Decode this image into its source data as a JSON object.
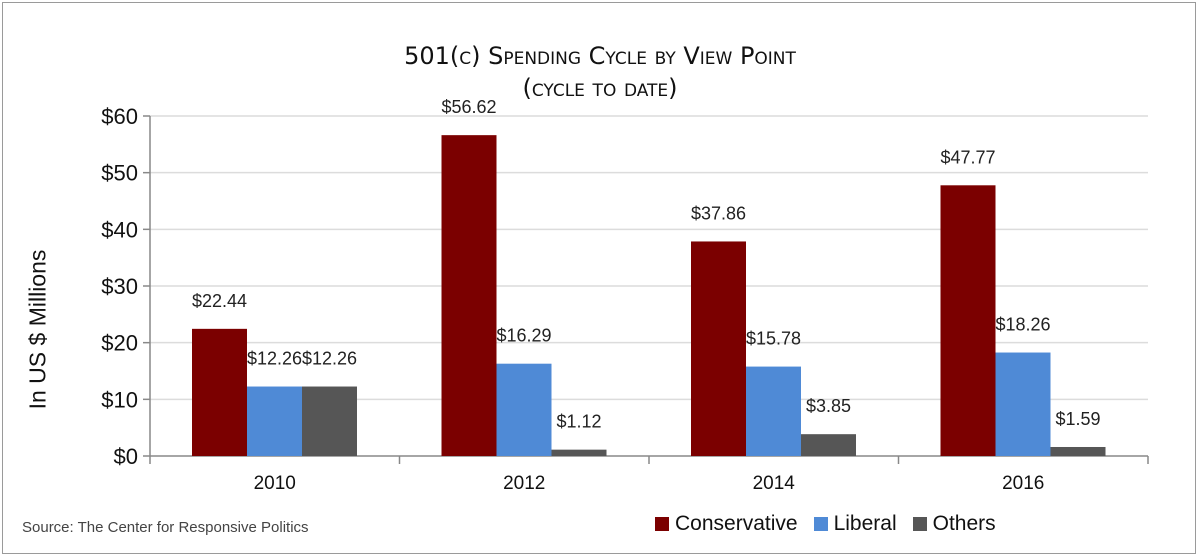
{
  "chart_data": {
    "type": "bar",
    "title": "501(c) Spending Cycle by View Point",
    "subtitle": "(cycle to date)",
    "xlabel": "",
    "ylabel": "In US $ Millions",
    "ylim": [
      0,
      60
    ],
    "yticks": [
      0,
      10,
      20,
      30,
      40,
      50,
      60
    ],
    "ytick_labels": [
      "$0",
      "$10",
      "$20",
      "$30",
      "$40",
      "$50",
      "$60"
    ],
    "grid": true,
    "legend_position": "bottom-right",
    "categories": [
      "2010",
      "2012",
      "2014",
      "2016"
    ],
    "series": [
      {
        "name": "Conservative",
        "color": "#7b0000",
        "values": [
          22.44,
          56.62,
          37.86,
          47.77
        ],
        "labels": [
          "$22.44",
          "$56.62",
          "$37.86",
          "$47.77"
        ]
      },
      {
        "name": "Liberal",
        "color": "#4f8ad6",
        "values": [
          12.26,
          16.29,
          15.78,
          18.26
        ],
        "labels": [
          "$12.26",
          "$16.29",
          "$15.78",
          "$18.26"
        ]
      },
      {
        "name": "Others",
        "color": "#565656",
        "values": [
          12.26,
          1.12,
          3.85,
          1.59
        ],
        "labels": [
          "$12.26",
          "$1.12",
          "$3.85",
          "$1.59"
        ]
      }
    ],
    "source": "Source: The Center for Responsive Politics"
  }
}
